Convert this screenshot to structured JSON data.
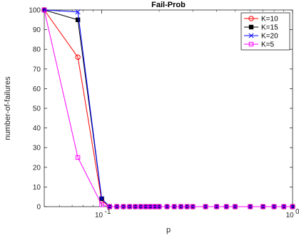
{
  "chart_data": {
    "type": "line",
    "title": "Fail-Prob",
    "xlabel": "p",
    "ylabel": "number-of-failures",
    "xscale": "log",
    "xlim": [
      0.05,
      1.0
    ],
    "ylim": [
      0,
      100
    ],
    "yticks": [
      0,
      10,
      20,
      30,
      40,
      50,
      60,
      70,
      80,
      90,
      100
    ],
    "xticks": [
      {
        "value": 0.1,
        "base": "10",
        "exp": "-1"
      },
      {
        "value": 1.0,
        "base": "10",
        "exp": "0"
      }
    ],
    "grid": false,
    "legend_position": "top-right",
    "x": [
      0.05,
      0.075,
      0.1,
      0.11,
      0.12,
      0.13,
      0.14,
      0.15,
      0.16,
      0.17,
      0.18,
      0.19,
      0.2,
      0.22,
      0.24,
      0.26,
      0.28,
      0.3,
      0.35,
      0.4,
      0.45,
      0.5,
      0.6,
      0.7,
      0.8,
      0.9,
      1.0
    ],
    "series": [
      {
        "name": "K=10",
        "color": "#ff0000",
        "marker": "circle",
        "values": [
          100,
          76,
          3,
          0,
          0,
          0,
          0,
          0,
          0,
          0,
          0,
          0,
          0,
          0,
          0,
          0,
          0,
          0,
          0,
          0,
          0,
          0,
          0,
          0,
          0,
          0,
          0
        ]
      },
      {
        "name": "K=15",
        "color": "#000000",
        "marker": "square-filled",
        "values": [
          100,
          95,
          4,
          0,
          0,
          0,
          0,
          0,
          0,
          0,
          0,
          0,
          0,
          0,
          0,
          0,
          0,
          0,
          0,
          0,
          0,
          0,
          0,
          0,
          0,
          0,
          0
        ]
      },
      {
        "name": "K=20",
        "color": "#0000ff",
        "marker": "x",
        "values": [
          100,
          99,
          4,
          0,
          0,
          0,
          0,
          0,
          0,
          0,
          0,
          0,
          0,
          0,
          0,
          0,
          0,
          0,
          0,
          0,
          0,
          0,
          0,
          0,
          0,
          0,
          0
        ]
      },
      {
        "name": "K=5",
        "color": "#ff00ff",
        "marker": "square",
        "values": [
          100,
          25,
          1,
          0,
          0,
          0,
          0,
          0,
          0,
          0,
          0,
          0,
          0,
          0,
          0,
          0,
          0,
          0,
          0,
          0,
          0,
          0,
          0,
          0,
          0,
          0,
          0
        ]
      }
    ]
  }
}
